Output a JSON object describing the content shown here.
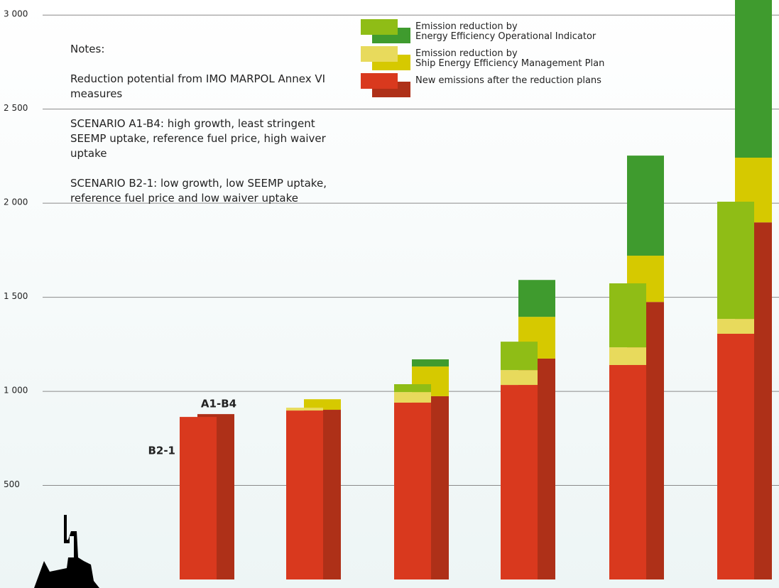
{
  "chart_data": {
    "type": "stacked-bar",
    "categories": [
      null,
      null,
      null,
      null,
      null,
      null
    ],
    "scenarios": [
      "B2-1",
      "A1-B4"
    ],
    "series": [
      {
        "name": "New emissions after the reduction plans",
        "colors": [
          "#d9391e",
          "#ae3018"
        ],
        "values": [
          [
            864,
            898,
            940,
            1034,
            1140,
            1306
          ],
          [
            879,
            902,
            974,
            1174,
            1475,
            1898
          ]
        ]
      },
      {
        "name": "Emission reduction by\nShip Energy Efficiency Management Plan",
        "colors": [
          "#e8da5c",
          "#d6c900"
        ],
        "values": [
          [
            0,
            15,
            56,
            79,
            94,
            79
          ],
          [
            0,
            56,
            158,
            222,
            246,
            344
          ]
        ]
      },
      {
        "name": "Emission reduction by\nEnergy Efficiency Operational Indicator",
        "colors": [
          "#8fbd16",
          "#3f9b2e"
        ],
        "values": [
          [
            0,
            0,
            42,
            151,
            340,
            623
          ],
          [
            0,
            0,
            38,
            196,
            532,
            838
          ]
        ]
      }
    ],
    "legend_order": [
      2,
      1,
      0
    ],
    "ylim": [
      0,
      3080
    ],
    "yticks": [
      500,
      {
        "value": 1000,
        "label": "1 000"
      },
      {
        "value": 1500,
        "label": "1 500"
      },
      {
        "value": 2000,
        "label": "2 000"
      },
      {
        "value": 2500,
        "label": "2 500"
      },
      {
        "value": 3000,
        "label": "3 000"
      }
    ],
    "grid": true,
    "notes": {
      "title": "Notes:",
      "paragraphs": [
        "Reduction potential from IMO MARPOL Annex VI\nmeasures",
        "SCENARIO A1-B4: high growth, least stringent\nSEEMP uptake, reference fuel price, high waiver\nuptake",
        "SCENARIO B2-1: low growth, low SEEMP uptake,\nreference fuel price and low waiver uptake"
      ]
    }
  }
}
